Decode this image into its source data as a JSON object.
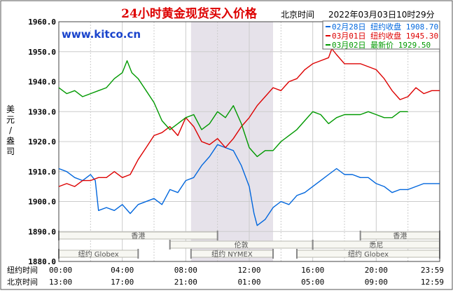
{
  "header": {
    "title": "24小时黄金现货买入价格",
    "location": "北京时间",
    "timestamp": "2022年03月03日10时29分"
  },
  "watermark": "www.kitco.cn",
  "legend": [
    {
      "text": "02月28日 纽约收盘 1908.70",
      "color": "#0066dd"
    },
    {
      "text": "03月01日 纽约收盘 1945.30",
      "color": "#dd0000"
    },
    {
      "text": "03月02日    最新价 1929.50",
      "color": "#009900"
    }
  ],
  "ylabel": "美元/盎司",
  "row_labels": {
    "ny": "纽约时间",
    "bj": "北京时间"
  },
  "markets": [
    {
      "name": "香港",
      "start": 0,
      "end": 10
    },
    {
      "name": "伦敦",
      "start": 7,
      "end": 16
    },
    {
      "name": "纽约 Globex",
      "start": 0,
      "end": 5
    },
    {
      "name": "纽约 NYMEX",
      "start": 8.33,
      "end": 13.5
    },
    {
      "name": "纽约 Globex",
      "start": 15,
      "end": 24
    },
    {
      "name": "悉尼",
      "start": 16,
      "end": 24
    },
    {
      "name": "香港",
      "start": 19,
      "end": 24
    }
  ],
  "chart_data": {
    "type": "line",
    "x_unit": "hour (NY time)",
    "xlim": [
      0,
      24
    ],
    "ylim": [
      1880,
      1960
    ],
    "yticks": [
      "1960.0",
      "1950.0",
      "1940.0",
      "1930.0",
      "1920.0",
      "1910.0",
      "1900.0",
      "1890.0",
      "1880.0"
    ],
    "xticks_ny": [
      "00:00",
      "04:00",
      "08:00",
      "12:00",
      "16:00",
      "20:00",
      "23:59"
    ],
    "xticks_bj": [
      "13:00",
      "17:00",
      "21:00",
      "01:00",
      "05:00",
      "09:00",
      "12:59"
    ],
    "highlight": {
      "start": 8.33,
      "end": 13.5
    },
    "series": [
      {
        "name": "02月28日",
        "color": "#0066dd",
        "points": [
          [
            0,
            1911
          ],
          [
            0.5,
            1910
          ],
          [
            1,
            1908
          ],
          [
            1.5,
            1907
          ],
          [
            2,
            1909
          ],
          [
            2.3,
            1907
          ],
          [
            2.5,
            1897
          ],
          [
            3,
            1898
          ],
          [
            3.5,
            1897
          ],
          [
            4,
            1899
          ],
          [
            4.5,
            1896
          ],
          [
            5,
            1899
          ],
          [
            6,
            1901
          ],
          [
            6.5,
            1899
          ],
          [
            7,
            1904
          ],
          [
            7.5,
            1903
          ],
          [
            8,
            1907
          ],
          [
            8.5,
            1908
          ],
          [
            9,
            1912
          ],
          [
            9.5,
            1915
          ],
          [
            10,
            1919
          ],
          [
            10.5,
            1918
          ],
          [
            11,
            1917
          ],
          [
            11.5,
            1912
          ],
          [
            12,
            1905
          ],
          [
            12.3,
            1896
          ],
          [
            12.5,
            1892
          ],
          [
            13,
            1894
          ],
          [
            13.5,
            1898
          ],
          [
            14,
            1900
          ],
          [
            14.5,
            1899
          ],
          [
            15,
            1902
          ],
          [
            15.5,
            1903
          ],
          [
            16,
            1905
          ],
          [
            16.5,
            1907
          ],
          [
            17,
            1909
          ],
          [
            17.5,
            1911
          ],
          [
            18,
            1909
          ],
          [
            18.5,
            1909
          ],
          [
            19,
            1908
          ],
          [
            19.5,
            1908
          ],
          [
            20,
            1906
          ],
          [
            20.5,
            1905
          ],
          [
            21,
            1903
          ],
          [
            21.5,
            1904
          ],
          [
            22,
            1904
          ],
          [
            22.5,
            1905
          ],
          [
            23,
            1906
          ],
          [
            23.5,
            1906
          ],
          [
            24,
            1906
          ]
        ]
      },
      {
        "name": "03月01日",
        "color": "#dd0000",
        "points": [
          [
            0,
            1905
          ],
          [
            0.5,
            1906
          ],
          [
            1,
            1905
          ],
          [
            1.5,
            1907
          ],
          [
            2,
            1907
          ],
          [
            2.5,
            1908
          ],
          [
            3,
            1908
          ],
          [
            3.5,
            1910
          ],
          [
            4,
            1908
          ],
          [
            4.5,
            1909
          ],
          [
            5,
            1914
          ],
          [
            5.5,
            1918
          ],
          [
            6,
            1922
          ],
          [
            6.5,
            1923
          ],
          [
            7,
            1925
          ],
          [
            7.5,
            1922
          ],
          [
            8,
            1928
          ],
          [
            8.5,
            1925
          ],
          [
            9,
            1920
          ],
          [
            9.5,
            1919
          ],
          [
            10,
            1921
          ],
          [
            10.5,
            1918
          ],
          [
            11,
            1921
          ],
          [
            11.5,
            1925
          ],
          [
            12,
            1928
          ],
          [
            12.5,
            1932
          ],
          [
            13,
            1935
          ],
          [
            13.5,
            1938
          ],
          [
            14,
            1937
          ],
          [
            14.5,
            1940
          ],
          [
            15,
            1941
          ],
          [
            15.5,
            1944
          ],
          [
            16,
            1946
          ],
          [
            16.5,
            1947
          ],
          [
            17,
            1948
          ],
          [
            17.2,
            1951
          ],
          [
            17.5,
            1949
          ],
          [
            18,
            1946
          ],
          [
            18.5,
            1946
          ],
          [
            19,
            1946
          ],
          [
            19.5,
            1945
          ],
          [
            20,
            1944
          ],
          [
            20.5,
            1941
          ],
          [
            21,
            1937
          ],
          [
            21.5,
            1934
          ],
          [
            22,
            1935
          ],
          [
            22.5,
            1938
          ],
          [
            23,
            1936
          ],
          [
            23.5,
            1937
          ],
          [
            24,
            1937
          ]
        ]
      },
      {
        "name": "03月02日",
        "color": "#009900",
        "points": [
          [
            0,
            1938
          ],
          [
            0.5,
            1936
          ],
          [
            1,
            1937
          ],
          [
            1.5,
            1935
          ],
          [
            2,
            1936
          ],
          [
            2.5,
            1937
          ],
          [
            3,
            1938
          ],
          [
            3.5,
            1941
          ],
          [
            4,
            1943
          ],
          [
            4.3,
            1947
          ],
          [
            4.6,
            1943
          ],
          [
            5,
            1941
          ],
          [
            5.5,
            1937
          ],
          [
            6,
            1933
          ],
          [
            6.5,
            1927
          ],
          [
            7,
            1924
          ],
          [
            7.5,
            1926
          ],
          [
            8,
            1928
          ],
          [
            8.5,
            1929
          ],
          [
            9,
            1924
          ],
          [
            9.5,
            1926
          ],
          [
            10,
            1930
          ],
          [
            10.5,
            1928
          ],
          [
            11,
            1932
          ],
          [
            11.5,
            1926
          ],
          [
            12,
            1918
          ],
          [
            12.5,
            1915
          ],
          [
            13,
            1917
          ],
          [
            13.5,
            1917
          ],
          [
            14,
            1920
          ],
          [
            14.5,
            1922
          ],
          [
            15,
            1924
          ],
          [
            15.5,
            1927
          ],
          [
            16,
            1930
          ],
          [
            16.5,
            1929
          ],
          [
            17,
            1926
          ],
          [
            17.5,
            1928
          ],
          [
            18,
            1929
          ],
          [
            19,
            1929
          ],
          [
            19.5,
            1930
          ],
          [
            20,
            1929
          ],
          [
            20.5,
            1928
          ],
          [
            21,
            1928
          ],
          [
            21.5,
            1930
          ],
          [
            22,
            1930
          ]
        ]
      }
    ]
  }
}
